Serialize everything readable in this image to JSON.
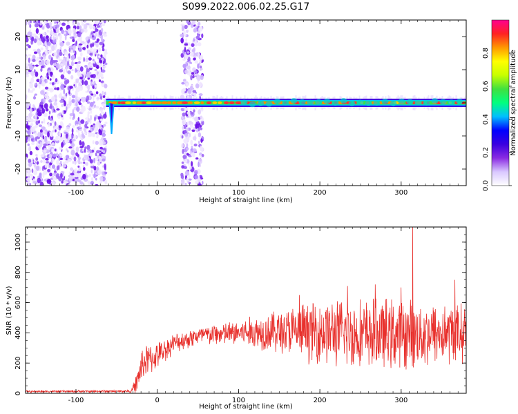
{
  "title": "S099.2022.006.02.25.G17",
  "colors": {
    "snr_line": "#e8302c",
    "spectrogram_low": "#e9dcff",
    "spectrogram_mid": "#7b2cf0",
    "band_core": "#ff3030"
  },
  "chart_data": [
    {
      "type": "heatmap",
      "xlabel": "Height of straight line (km)",
      "ylabel": "Frequency (Hz)",
      "xlim": [
        -162,
        380
      ],
      "ylim": [
        -25,
        25
      ],
      "x_ticks": [
        "-100",
        "0",
        "100",
        "200",
        "300"
      ],
      "x_tick_values": [
        -100,
        0,
        100,
        200,
        300
      ],
      "y_ticks": [
        "-20",
        "-10",
        "0",
        "10",
        "20"
      ],
      "y_tick_values": [
        -20,
        -10,
        0,
        10,
        20
      ],
      "colorbar": {
        "label": "Normalized spectral amplitude",
        "range": [
          0,
          1
        ],
        "ticks": [
          "0.0",
          "0.2",
          "0.4",
          "0.6",
          "0.8"
        ],
        "tick_values": [
          0,
          0.2,
          0.4,
          0.6,
          0.8
        ],
        "colormap": [
          "#ffffff",
          "#d9c8ff",
          "#8a2be2",
          "#3a00e0",
          "#0000ff",
          "#00bfff",
          "#00ff7f",
          "#40e040",
          "#c8ff00",
          "#ffff00",
          "#ff9900",
          "#ff2222",
          "#ff0090"
        ]
      },
      "regions": [
        {
          "x_range": [
            -162,
            -63
          ],
          "description_level": "broadband noise"
        },
        {
          "x_range": [
            30,
            56
          ],
          "description_level": "broadband noise"
        },
        {
          "x_range": [
            -63,
            380
          ],
          "narrowband_center_hz": 0
        }
      ]
    },
    {
      "type": "line",
      "xlabel": "Height of straight line (km)",
      "ylabel": "SNR (10 * v/v)",
      "xlim": [
        -162,
        380
      ],
      "ylim": [
        0,
        1100
      ],
      "x_ticks": [
        "-100",
        "0",
        "100",
        "200",
        "300"
      ],
      "x_tick_values": [
        -100,
        0,
        100,
        200,
        300
      ],
      "y_ticks": [
        "0",
        "200",
        "400",
        "600",
        "800",
        "1000"
      ],
      "y_tick_values": [
        0,
        200,
        400,
        600,
        800,
        1000
      ],
      "trend": [
        {
          "x": -162,
          "mean": 12,
          "spread": 6
        },
        {
          "x": -32,
          "mean": 14,
          "spread": 8
        },
        {
          "x": -26,
          "mean": 60,
          "spread": 60
        },
        {
          "x": -18,
          "mean": 200,
          "spread": 110
        },
        {
          "x": 0,
          "mean": 250,
          "spread": 80
        },
        {
          "x": 20,
          "mean": 330,
          "spread": 60
        },
        {
          "x": 50,
          "mean": 380,
          "spread": 60
        },
        {
          "x": 100,
          "mean": 400,
          "spread": 80
        },
        {
          "x": 150,
          "mean": 410,
          "spread": 140
        },
        {
          "x": 200,
          "mean": 410,
          "spread": 200
        },
        {
          "x": 250,
          "mean": 390,
          "spread": 220
        },
        {
          "x": 300,
          "mean": 390,
          "spread": 220
        },
        {
          "x": 380,
          "mean": 400,
          "spread": 180
        }
      ],
      "peaks": [
        {
          "x": 314,
          "y": 1100
        },
        {
          "x": 366,
          "y": 750
        },
        {
          "x": 234,
          "y": 710
        },
        {
          "x": 268,
          "y": 720
        },
        {
          "x": 175,
          "y": 650
        },
        {
          "x": 300,
          "y": 700
        }
      ],
      "series": [
        {
          "values_note": "",
          "color": "#e8302c"
        }
      ]
    }
  ]
}
